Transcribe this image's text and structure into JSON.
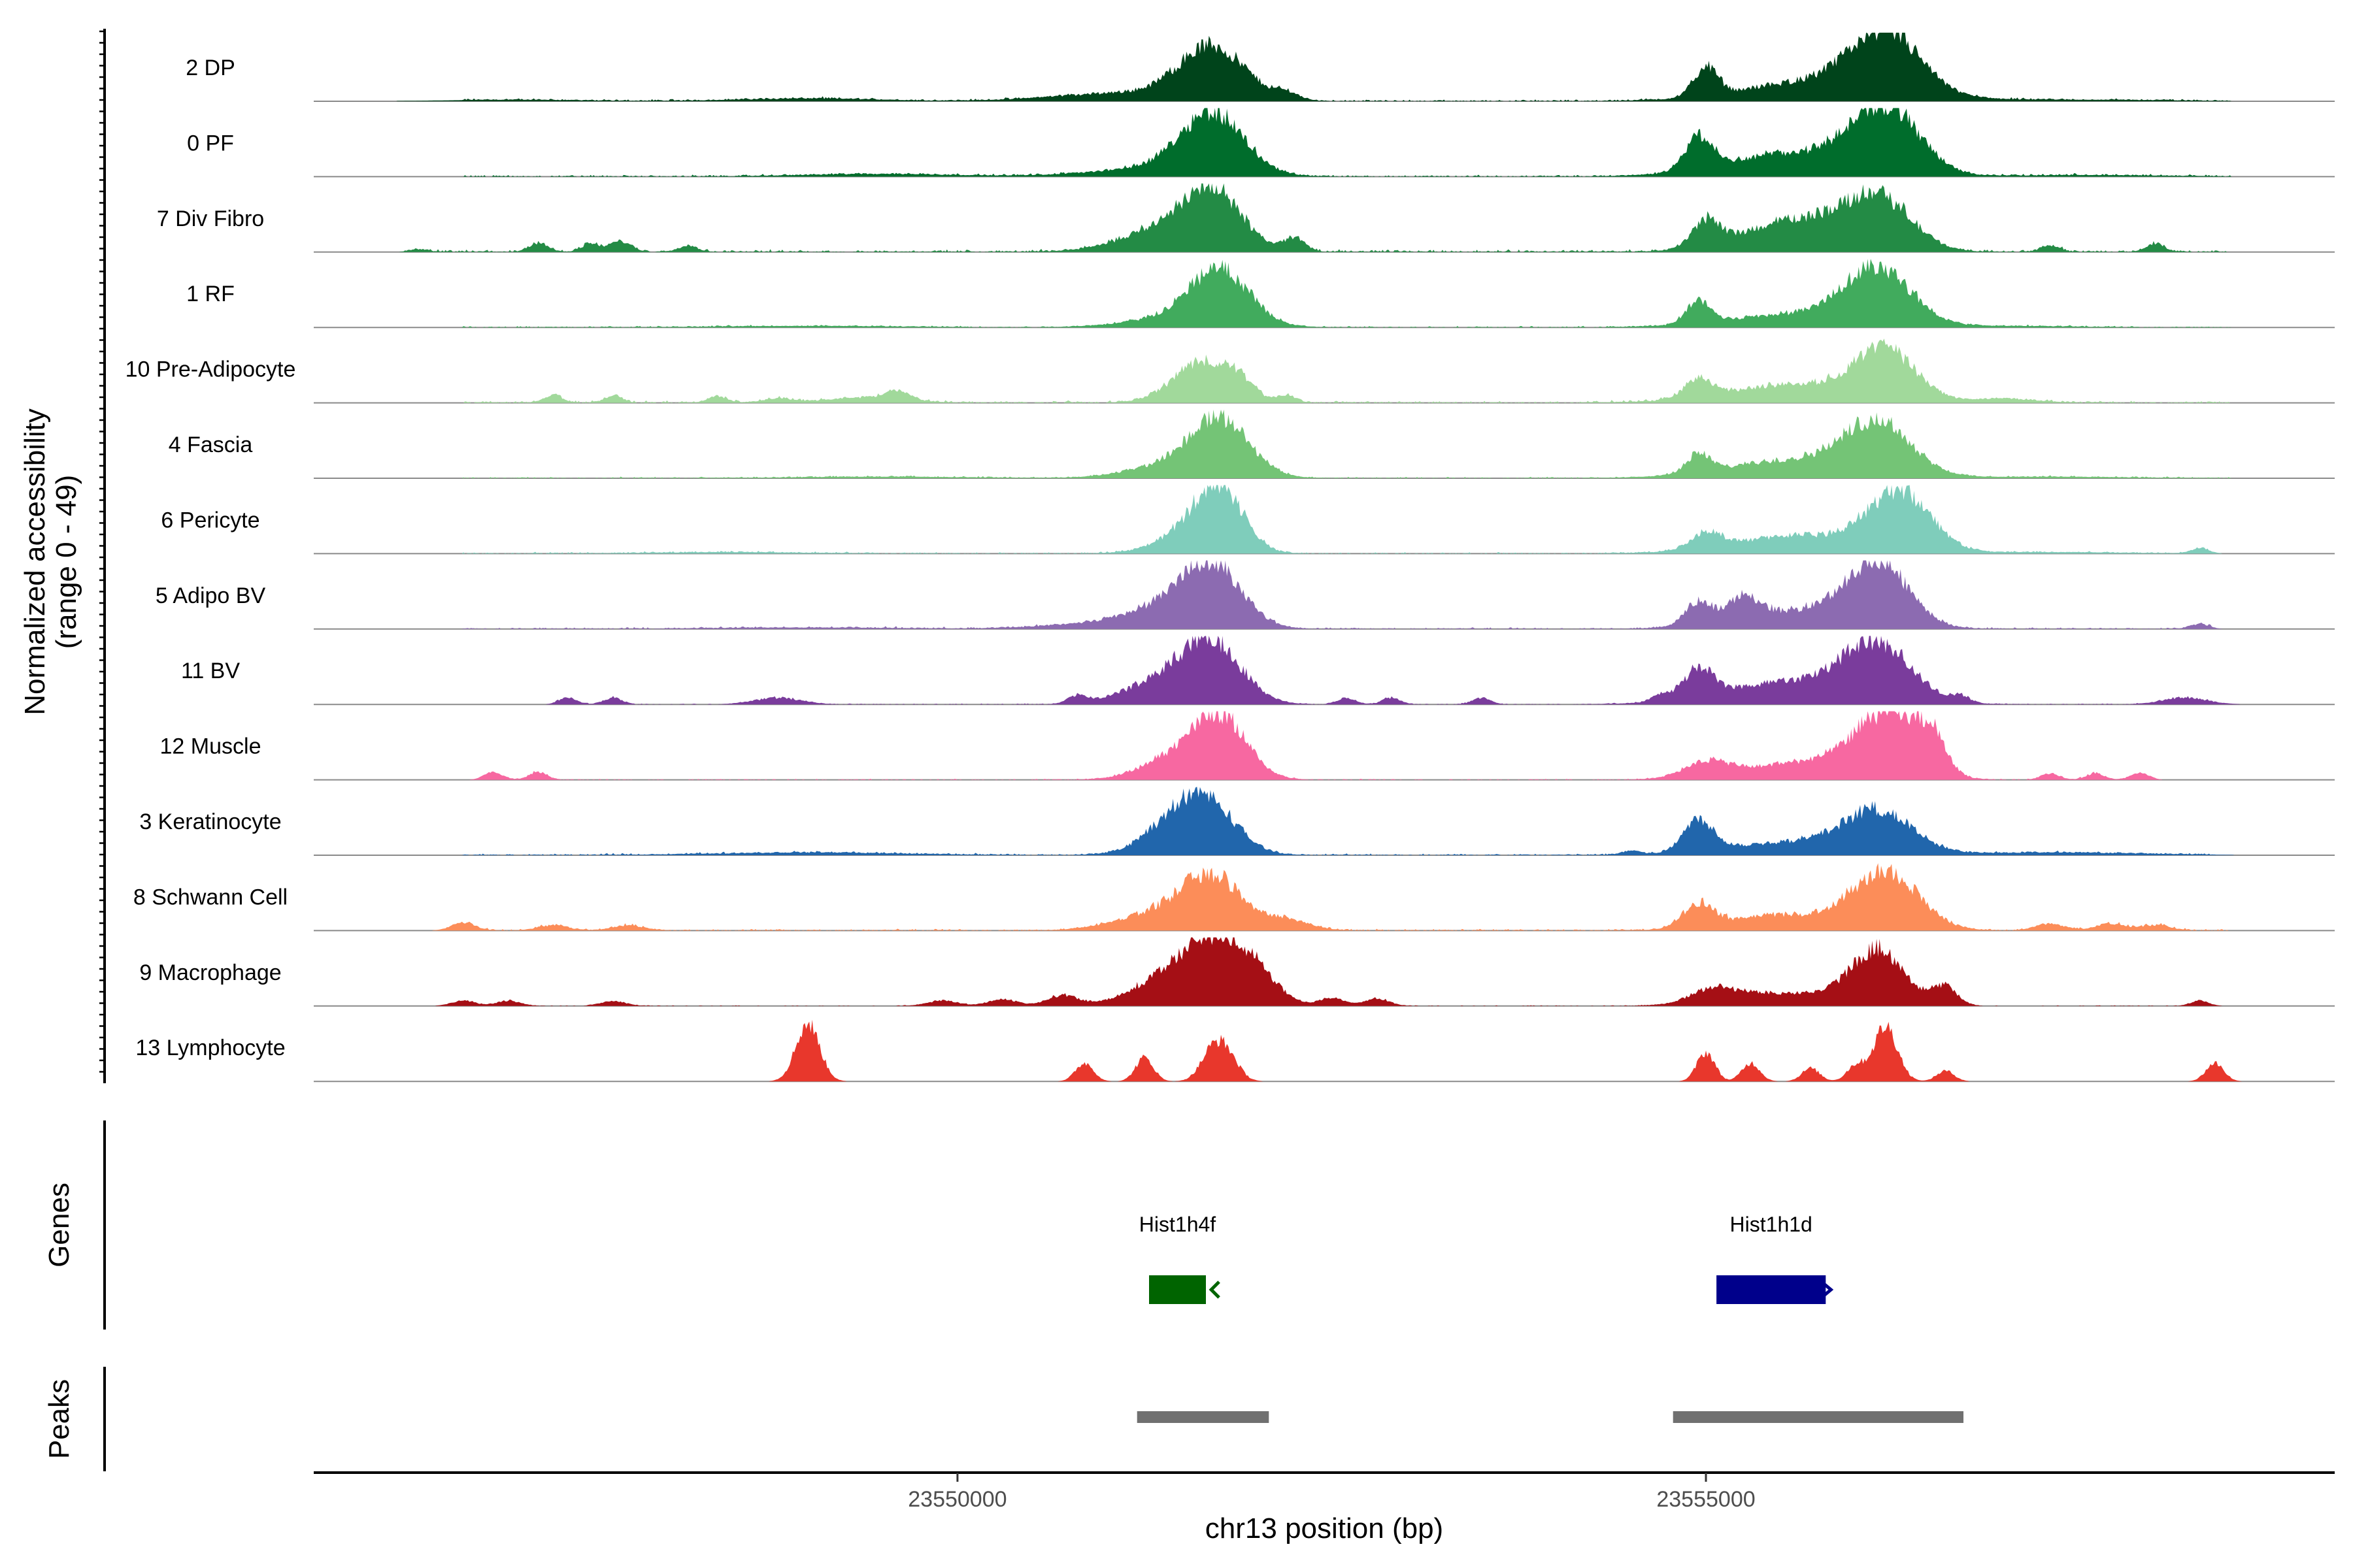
{
  "chart_data": {
    "type": "area",
    "title": "",
    "ylabel_lines": [
      "Normalized accessibility",
      "(range 0 - 49)"
    ],
    "ylim": [
      0,
      49
    ],
    "xlabel": "chr13 position (bp)",
    "xlim": [
      23545700,
      23559200
    ],
    "xticks": [
      {
        "value": 23550000,
        "label": "23550000"
      },
      {
        "value": 23555000,
        "label": "23555000"
      }
    ],
    "tracks": [
      {
        "name": "2 DP",
        "color": "#00441b",
        "peaks": [
          [
            23551700,
            40,
            220
          ],
          [
            23556200,
            44,
            220
          ],
          [
            23555000,
            22,
            80
          ],
          [
            23551100,
            6,
            450
          ],
          [
            23555800,
            16,
            500
          ],
          [
            23552200,
            5,
            80
          ],
          [
            23549000,
            2,
            450
          ],
          [
            23547000,
            1,
            450
          ],
          [
            23557500,
            1,
            600
          ]
        ],
        "noise_start": 23546700,
        "noise_end": 23558500,
        "noise_level": 1.5
      },
      {
        "name": "0 PF",
        "color": "#006d2c",
        "peaks": [
          [
            23551700,
            46,
            210
          ],
          [
            23556200,
            48,
            220
          ],
          [
            23554950,
            25,
            90
          ],
          [
            23551300,
            6,
            400
          ],
          [
            23555600,
            18,
            450
          ],
          [
            23549500,
            2,
            500
          ],
          [
            23557600,
            1,
            500
          ]
        ],
        "noise_start": 23546700,
        "noise_end": 23558500,
        "noise_level": 1.5
      },
      {
        "name": "7 Div Fibro",
        "color": "#238b45",
        "peaks": [
          [
            23551700,
            42,
            200
          ],
          [
            23556150,
            38,
            220
          ],
          [
            23555000,
            20,
            90
          ],
          [
            23551350,
            15,
            280
          ],
          [
            23555600,
            24,
            350
          ],
          [
            23552250,
            10,
            70
          ],
          [
            23547200,
            7,
            60
          ],
          [
            23547550,
            6,
            60
          ],
          [
            23547750,
            8,
            70
          ],
          [
            23548200,
            5,
            60
          ],
          [
            23557300,
            5,
            60
          ],
          [
            23558000,
            6,
            60
          ],
          [
            23546400,
            2,
            60
          ]
        ],
        "noise_start": 23546300,
        "noise_end": 23558500,
        "noise_level": 2.2
      },
      {
        "name": "1 RF",
        "color": "#41ab5d",
        "peaks": [
          [
            23551750,
            42,
            200
          ],
          [
            23556150,
            42,
            220
          ],
          [
            23554950,
            17,
            80
          ],
          [
            23551400,
            6,
            300
          ],
          [
            23555600,
            10,
            450
          ],
          [
            23549000,
            1,
            600
          ],
          [
            23557000,
            1,
            400
          ]
        ],
        "noise_start": 23546700,
        "noise_end": 23558500,
        "noise_level": 1.2
      },
      {
        "name": "10 Pre-Adipocyte",
        "color": "#a1d99b",
        "peaks": [
          [
            23551650,
            32,
            200
          ],
          [
            23556200,
            36,
            200
          ],
          [
            23554950,
            14,
            90
          ],
          [
            23555600,
            14,
            450
          ],
          [
            23551900,
            8,
            80
          ],
          [
            23552200,
            5,
            60
          ],
          [
            23547300,
            6,
            60
          ],
          [
            23547700,
            5,
            60
          ],
          [
            23548400,
            5,
            60
          ],
          [
            23549400,
            4,
            250
          ],
          [
            23549600,
            6,
            80
          ],
          [
            23548800,
            3,
            100
          ],
          [
            23557000,
            3,
            200
          ]
        ],
        "noise_start": 23546700,
        "noise_end": 23558500,
        "noise_level": 1.8
      },
      {
        "name": "4 Fascia",
        "color": "#74c476",
        "peaks": [
          [
            23551750,
            44,
            200
          ],
          [
            23556150,
            38,
            220
          ],
          [
            23554950,
            14,
            80
          ],
          [
            23551350,
            8,
            250
          ],
          [
            23555600,
            14,
            450
          ],
          [
            23549500,
            1,
            600
          ],
          [
            23557300,
            1,
            500
          ]
        ],
        "noise_start": 23546700,
        "noise_end": 23558500,
        "noise_level": 1.2
      },
      {
        "name": "6 Pericyte",
        "color": "#7fcdbb",
        "peaks": [
          [
            23551750,
            48,
            160
          ],
          [
            23551500,
            12,
            200
          ],
          [
            23556300,
            44,
            200
          ],
          [
            23555000,
            12,
            100
          ],
          [
            23555650,
            14,
            450
          ],
          [
            23558300,
            4,
            60
          ],
          [
            23548500,
            1,
            500
          ],
          [
            23557300,
            1,
            500
          ]
        ],
        "noise_start": 23546700,
        "noise_end": 23558400,
        "noise_level": 1.2
      },
      {
        "name": "5 Adipo BV",
        "color": "#8c6bb1",
        "peaks": [
          [
            23551700,
            46,
            200
          ],
          [
            23551350,
            14,
            260
          ],
          [
            23556150,
            46,
            200
          ],
          [
            23554950,
            18,
            90
          ],
          [
            23555250,
            18,
            100
          ],
          [
            23555650,
            14,
            400
          ],
          [
            23558300,
            4,
            60
          ],
          [
            23550800,
            3,
            300
          ],
          [
            23549000,
            1,
            600
          ]
        ],
        "noise_start": 23546700,
        "noise_end": 23558400,
        "noise_level": 1.4
      },
      {
        "name": "11 BV",
        "color": "#7a3c9c",
        "peaks": [
          [
            23551700,
            44,
            200
          ],
          [
            23551350,
            16,
            250
          ],
          [
            23556150,
            40,
            220
          ],
          [
            23554950,
            22,
            100
          ],
          [
            23555600,
            18,
            450
          ],
          [
            23550800,
            6,
            60
          ],
          [
            23552600,
            5,
            60
          ],
          [
            23552900,
            5,
            60
          ],
          [
            23553500,
            5,
            60
          ],
          [
            23556700,
            5,
            60
          ],
          [
            23547400,
            5,
            60
          ],
          [
            23547700,
            5,
            60
          ],
          [
            23548800,
            5,
            150
          ],
          [
            23558200,
            5,
            150
          ],
          [
            23554700,
            5,
            60
          ]
        ],
        "noise_start": 23547300,
        "noise_end": 23558400,
        "noise_level": 0.8
      },
      {
        "name": "12 Muscle",
        "color": "#f768a1",
        "peaks": [
          [
            23551750,
            48,
            180
          ],
          [
            23551400,
            14,
            200
          ],
          [
            23556200,
            44,
            200
          ],
          [
            23556500,
            28,
            100
          ],
          [
            23555000,
            12,
            150
          ],
          [
            23555700,
            14,
            400
          ],
          [
            23546900,
            6,
            60
          ],
          [
            23547200,
            6,
            60
          ],
          [
            23557300,
            5,
            60
          ],
          [
            23557600,
            5,
            60
          ],
          [
            23557900,
            5,
            60
          ]
        ],
        "noise_start": 23546800,
        "noise_end": 23558000,
        "noise_level": 0.8
      },
      {
        "name": "3 Keratinocyte",
        "color": "#2166ac",
        "peaks": [
          [
            23551650,
            40,
            200
          ],
          [
            23551400,
            14,
            200
          ],
          [
            23556150,
            30,
            220
          ],
          [
            23554950,
            24,
            100
          ],
          [
            23555600,
            10,
            450
          ],
          [
            23549000,
            2,
            600
          ],
          [
            23557300,
            2,
            600
          ],
          [
            23554500,
            3,
            60
          ]
        ],
        "noise_start": 23546700,
        "noise_end": 23558400,
        "noise_level": 1.4
      },
      {
        "name": "8 Schwann Cell",
        "color": "#fc8d59",
        "peaks": [
          [
            23551700,
            40,
            200
          ],
          [
            23551300,
            12,
            250
          ],
          [
            23556200,
            44,
            220
          ],
          [
            23554950,
            18,
            100
          ],
          [
            23555500,
            12,
            350
          ],
          [
            23552200,
            8,
            150
          ],
          [
            23546700,
            6,
            80
          ],
          [
            23547300,
            4,
            100
          ],
          [
            23547800,
            4,
            100
          ],
          [
            23557300,
            5,
            100
          ],
          [
            23557700,
            5,
            100
          ],
          [
            23558000,
            4,
            100
          ]
        ],
        "noise_start": 23546600,
        "noise_end": 23558500,
        "noise_level": 1.5
      },
      {
        "name": "9 Macrophage",
        "color": "#a50f15",
        "peaks": [
          [
            23551750,
            46,
            220
          ],
          [
            23551400,
            18,
            250
          ],
          [
            23556150,
            42,
            180
          ],
          [
            23555050,
            10,
            150
          ],
          [
            23555500,
            10,
            350
          ],
          [
            23556600,
            14,
            80
          ],
          [
            23552000,
            10,
            150
          ],
          [
            23552500,
            6,
            80
          ],
          [
            23552800,
            6,
            80
          ],
          [
            23550700,
            8,
            100
          ],
          [
            23550300,
            5,
            100
          ],
          [
            23549900,
            4,
            100
          ],
          [
            23546700,
            4,
            80
          ],
          [
            23547000,
            4,
            80
          ],
          [
            23547700,
            4,
            80
          ],
          [
            23558300,
            4,
            60
          ]
        ],
        "noise_start": 23546700,
        "noise_end": 23558400,
        "noise_level": 0.6
      },
      {
        "name": "13 Lymphocyte",
        "color": "#e8372c",
        "peaks": [
          [
            23549000,
            44,
            80
          ],
          [
            23551700,
            20,
            80
          ],
          [
            23551800,
            18,
            80
          ],
          [
            23551250,
            18,
            60
          ],
          [
            23550850,
            14,
            60
          ],
          [
            23556200,
            42,
            80
          ],
          [
            23555000,
            22,
            60
          ],
          [
            23555300,
            14,
            60
          ],
          [
            23555700,
            10,
            60
          ],
          [
            23556000,
            12,
            60
          ],
          [
            23556600,
            8,
            60
          ],
          [
            23558400,
            14,
            60
          ]
        ],
        "noise_start": 23548800,
        "noise_end": 23558500,
        "noise_level": 0
      }
    ],
    "genes": [
      {
        "name": "Hist1h4f",
        "start": 23551280,
        "end": 23551660,
        "color": "#006400",
        "strand": "-"
      },
      {
        "name": "Hist1h1d",
        "start": 23555070,
        "end": 23555800,
        "color": "#00008b",
        "strand": "+"
      }
    ],
    "peaks_regions": [
      {
        "start": 23551200,
        "end": 23552080,
        "color": "#707070"
      },
      {
        "start": 23554780,
        "end": 23556720,
        "color": "#707070"
      }
    ],
    "panel_labels": {
      "genes": "Genes",
      "peaks": "Peaks"
    }
  }
}
